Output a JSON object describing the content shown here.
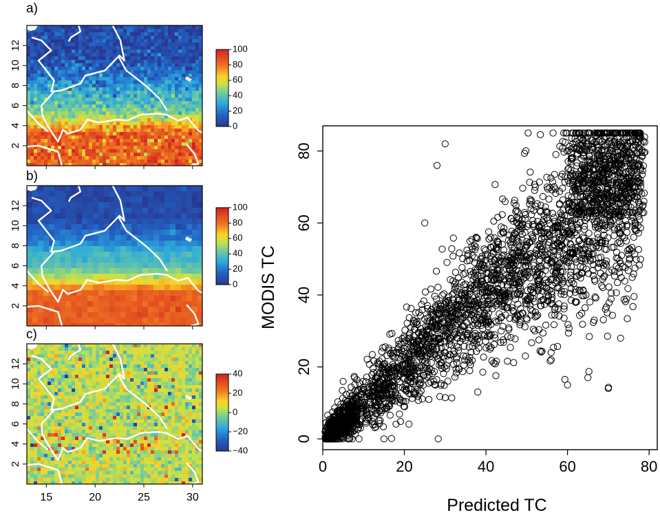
{
  "chart_data": [
    {
      "panel": "a)",
      "type": "heatmap",
      "x_ticks": [
        "15",
        "20",
        "25",
        "30"
      ],
      "y_ticks": [
        "2",
        "4",
        "6",
        "8",
        "10",
        "12"
      ],
      "xlim": [
        13,
        31
      ],
      "ylim": [
        0,
        14
      ],
      "colorbar": {
        "range": [
          0,
          100
        ],
        "ticks": [
          "100",
          "80",
          "60",
          "40",
          "20",
          "0"
        ]
      },
      "latitude_bands": [
        {
          "lat_range": [
            0,
            4
          ],
          "approx_value": 85
        },
        {
          "lat_range": [
            4,
            5.5
          ],
          "approx_value": 55
        },
        {
          "lat_range": [
            5.5,
            8
          ],
          "approx_value": 35
        },
        {
          "lat_range": [
            8,
            10
          ],
          "approx_value": 18
        },
        {
          "lat_range": [
            10,
            14
          ],
          "approx_value": 7
        }
      ]
    },
    {
      "panel": "b)",
      "type": "heatmap",
      "x_ticks": [
        "15",
        "20",
        "25",
        "30"
      ],
      "y_ticks": [
        "2",
        "4",
        "6",
        "8",
        "10",
        "12"
      ],
      "xlim": [
        13,
        31
      ],
      "ylim": [
        0,
        14
      ],
      "colorbar": {
        "range": [
          0,
          100
        ],
        "ticks": [
          "100",
          "80",
          "60",
          "40",
          "20",
          "0"
        ]
      },
      "latitude_bands": [
        {
          "lat_range": [
            0,
            4
          ],
          "approx_value": 85
        },
        {
          "lat_range": [
            4,
            5.5
          ],
          "approx_value": 55
        },
        {
          "lat_range": [
            5.5,
            8
          ],
          "approx_value": 35
        },
        {
          "lat_range": [
            8,
            10
          ],
          "approx_value": 18
        },
        {
          "lat_range": [
            10,
            14
          ],
          "approx_value": 7
        }
      ]
    },
    {
      "panel": "c)",
      "type": "heatmap",
      "x_ticks": [
        "15",
        "20",
        "25",
        "30"
      ],
      "y_ticks": [
        "2",
        "4",
        "6",
        "8",
        "10",
        "12"
      ],
      "xlim": [
        13,
        31
      ],
      "ylim": [
        0,
        14
      ],
      "colorbar": {
        "range": [
          -40,
          40
        ],
        "ticks": [
          "40",
          "20",
          "0",
          "−20",
          "−40"
        ]
      },
      "latitude_bands": [
        {
          "lat_range": [
            0,
            14
          ],
          "approx_value": 3
        }
      ]
    },
    {
      "type": "scatter",
      "xlabel": "Predicted TC",
      "ylabel": "MODIS TC",
      "xlim": [
        0,
        82
      ],
      "ylim": [
        -3,
        87
      ],
      "x_ticks": [
        "0",
        "20",
        "40",
        "60",
        "80"
      ],
      "y_ticks": [
        "0",
        "20",
        "40",
        "60",
        "80"
      ],
      "grid": false,
      "series": [
        {
          "trend": {
            "x_range": [
              0,
              78
            ],
            "approx_relation": "y = x"
          },
          "notable_points": [
            {
              "x": 30,
              "y": 82
            },
            {
              "x": 28,
              "y": 76
            },
            {
              "x": 60,
              "y": 15
            },
            {
              "x": 65,
              "y": 17
            },
            {
              "x": 70,
              "y": 14
            },
            {
              "x": 15,
              "y": 0
            },
            {
              "x": 25,
              "y": 60
            },
            {
              "x": 52,
              "y": 30
            },
            {
              "x": 56,
              "y": 22
            },
            {
              "x": 73,
              "y": 28
            }
          ]
        }
      ]
    }
  ]
}
